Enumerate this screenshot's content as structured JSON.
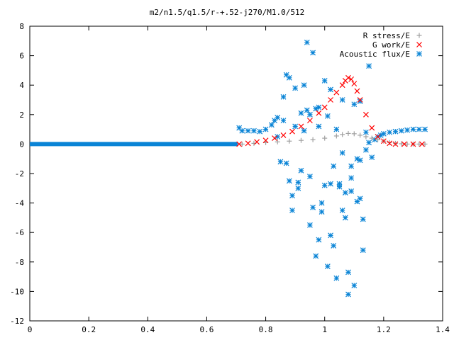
{
  "chart_data": {
    "type": "scatter",
    "title": "m2/n1.5/q1.5/r-+.52-j270/M1.0/512",
    "xlim": [
      0,
      1.4
    ],
    "ylim": [
      -12,
      8
    ],
    "x_ticks": [
      0,
      0.2,
      0.4,
      0.6,
      0.8,
      1,
      1.2,
      1.4
    ],
    "x_tick_labels": [
      "0",
      "0.2",
      "0.4",
      "0.6",
      "0.8",
      "1",
      "1.2",
      "1.4"
    ],
    "y_ticks": [
      -12,
      -10,
      -8,
      -6,
      -4,
      -2,
      0,
      2,
      4,
      6,
      8
    ],
    "y_tick_labels": [
      "-12",
      "-10",
      "-8",
      "-6",
      "-4",
      "-2",
      "0",
      "2",
      "4",
      "6",
      "8"
    ],
    "grid": false,
    "legend_position": "top-right",
    "series": [
      {
        "name": "R stress/E",
        "marker": "plus",
        "color": "#a0a0a0",
        "x": [
          0.72,
          0.76,
          0.8,
          0.84,
          0.88,
          0.92,
          0.96,
          1.0,
          1.04,
          1.06,
          1.08,
          1.1,
          1.12,
          1.14,
          1.16,
          1.18,
          1.2,
          1.22,
          1.24,
          1.26,
          1.28,
          1.3,
          1.32,
          1.34
        ],
        "y": [
          0.0,
          0.05,
          0.1,
          0.15,
          0.2,
          0.25,
          0.3,
          0.4,
          0.55,
          0.65,
          0.72,
          0.7,
          0.6,
          0.5,
          0.4,
          0.3,
          0.2,
          0.1,
          0.05,
          0.02,
          0.0,
          0.0,
          0.0,
          0.0
        ]
      },
      {
        "name": "G work/E",
        "marker": "cross",
        "color": "#ff0000",
        "x": [
          0.71,
          0.74,
          0.77,
          0.8,
          0.83,
          0.86,
          0.89,
          0.92,
          0.95,
          0.98,
          1.0,
          1.02,
          1.04,
          1.06,
          1.07,
          1.08,
          1.09,
          1.1,
          1.11,
          1.12,
          1.14,
          1.16,
          1.18,
          1.2,
          1.22,
          1.24,
          1.27,
          1.3,
          1.33
        ],
        "y": [
          0.0,
          0.05,
          0.15,
          0.25,
          0.4,
          0.6,
          0.85,
          1.2,
          1.6,
          2.1,
          2.5,
          3.0,
          3.5,
          4.0,
          4.3,
          4.5,
          4.4,
          4.1,
          3.6,
          3.0,
          2.0,
          1.1,
          0.5,
          0.2,
          0.05,
          0.0,
          0.0,
          0.0,
          0.0
        ]
      },
      {
        "name": "Acoustic flux/E",
        "marker": "star",
        "color": "#0a84d6",
        "baseline_x": [
          0,
          0.705
        ],
        "baseline_y": 0,
        "x": [
          0.71,
          0.72,
          0.74,
          0.76,
          0.78,
          0.8,
          0.82,
          0.83,
          0.84,
          0.85,
          0.86,
          0.87,
          0.88,
          0.89,
          0.9,
          0.91,
          0.92,
          0.93,
          0.94,
          0.95,
          0.96,
          0.97,
          0.98,
          0.99,
          1.0,
          1.01,
          1.02,
          1.03,
          1.04,
          1.05,
          1.06,
          1.07,
          1.08,
          1.09,
          1.1,
          1.11,
          1.12,
          1.13,
          1.14,
          1.15,
          1.16,
          1.17,
          1.18,
          1.19,
          1.2,
          1.22,
          1.24,
          1.26,
          1.28,
          1.3,
          1.32,
          1.34,
          0.88,
          0.9,
          0.92,
          0.94,
          0.96,
          0.98,
          1.0,
          1.02,
          1.04,
          1.06,
          1.08,
          1.1,
          1.12,
          1.14,
          0.86,
          0.89,
          0.93,
          0.95,
          0.97,
          0.99,
          1.01,
          1.03,
          1.05,
          1.07,
          1.09,
          1.11,
          1.13,
          1.15,
          0.84,
          0.87,
          0.91,
          0.95,
          0.98,
          1.02,
          1.06,
          1.09,
          1.12
        ],
        "y": [
          1.1,
          0.9,
          0.9,
          0.9,
          0.85,
          1.0,
          1.3,
          1.6,
          1.8,
          -1.2,
          3.2,
          4.7,
          4.5,
          -4.5,
          1.2,
          -3.0,
          2.1,
          0.9,
          6.9,
          -5.5,
          6.2,
          -7.6,
          2.5,
          -4.0,
          4.3,
          -8.3,
          3.7,
          -1.5,
          1.0,
          -2.7,
          3.0,
          -3.3,
          -10.2,
          -2.3,
          -9.6,
          -1.0,
          2.9,
          -7.2,
          -0.4,
          5.3,
          -0.9,
          0.3,
          0.5,
          0.6,
          0.7,
          0.8,
          0.85,
          0.9,
          0.95,
          1.0,
          1.0,
          1.0,
          -2.5,
          3.8,
          -1.8,
          2.3,
          -4.3,
          1.2,
          -2.8,
          -6.2,
          -9.1,
          -4.5,
          -8.7,
          2.7,
          -3.7,
          0.8,
          1.6,
          -3.5,
          4.0,
          -2.2,
          2.4,
          -4.6,
          1.9,
          -6.9,
          -2.9,
          -5.0,
          -1.5,
          -3.9,
          -5.1,
          0.1,
          0.5,
          -1.3,
          -2.6,
          2.0,
          -6.5,
          -2.7,
          -0.6,
          -3.2,
          -1.1
        ]
      }
    ]
  }
}
